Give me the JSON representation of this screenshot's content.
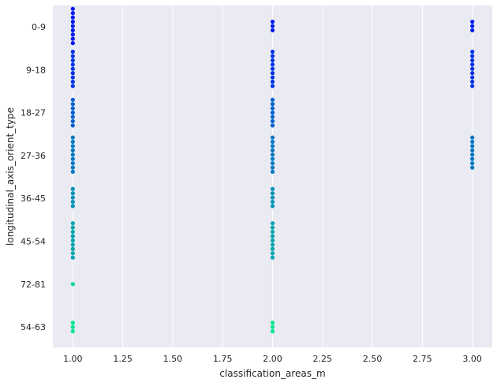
{
  "chart_data": {
    "type": "scatter",
    "title": "",
    "xlabel": "classification_areas_m",
    "ylabel": "longitudinal_axis_orient_type",
    "xlim": [
      0.9,
      3.1
    ],
    "x_ticks": [
      "1.00",
      "1.25",
      "1.50",
      "1.75",
      "2.00",
      "2.25",
      "2.50",
      "2.75",
      "3.00"
    ],
    "x_tick_values": [
      1.0,
      1.25,
      1.5,
      1.75,
      2.0,
      2.25,
      2.5,
      2.75,
      3.0
    ],
    "y_categories": [
      "0-9",
      "9-18",
      "18-27",
      "27-36",
      "36-45",
      "45-54",
      "72-81",
      "54-63"
    ],
    "grid": true,
    "background": "#eaeaf2",
    "colormap": "winter",
    "category_colors": [
      "#0019ef",
      "#0033e5",
      "#0060cc",
      "#0078c2",
      "#0092b6",
      "#00a4ad",
      "#00d894",
      "#00e68d"
    ],
    "points": [
      {
        "x": 1,
        "category": "0-9",
        "offsets": [
          -0.42,
          -0.32,
          -0.22,
          -0.12,
          -0.02,
          0.08,
          0.18,
          0.28,
          0.38
        ]
      },
      {
        "x": 2,
        "category": "0-9",
        "offsets": [
          -0.12,
          -0.02,
          0.08
        ]
      },
      {
        "x": 3,
        "category": "0-9",
        "offsets": [
          -0.12,
          -0.02,
          0.08
        ]
      },
      {
        "x": 1,
        "category": "9-18",
        "offsets": [
          -0.42,
          -0.32,
          -0.22,
          -0.12,
          -0.02,
          0.08,
          0.18,
          0.28,
          0.38
        ]
      },
      {
        "x": 2,
        "category": "9-18",
        "offsets": [
          -0.42,
          -0.32,
          -0.22,
          -0.12,
          -0.02,
          0.08,
          0.18,
          0.28,
          0.38
        ]
      },
      {
        "x": 3,
        "category": "9-18",
        "offsets": [
          -0.42,
          -0.32,
          -0.22,
          -0.12,
          -0.02,
          0.08,
          0.18,
          0.28,
          0.38
        ]
      },
      {
        "x": 1,
        "category": "18-27",
        "offsets": [
          -0.3,
          -0.2,
          -0.1,
          0,
          0.1,
          0.2,
          0.3
        ]
      },
      {
        "x": 2,
        "category": "18-27",
        "offsets": [
          -0.3,
          -0.2,
          -0.1,
          0,
          0.1,
          0.2,
          0.3
        ]
      },
      {
        "x": 1,
        "category": "27-36",
        "offsets": [
          -0.42,
          -0.32,
          -0.22,
          -0.12,
          -0.02,
          0.08,
          0.18,
          0.28,
          0.38
        ]
      },
      {
        "x": 2,
        "category": "27-36",
        "offsets": [
          -0.42,
          -0.32,
          -0.22,
          -0.12,
          -0.02,
          0.08,
          0.18,
          0.28,
          0.38
        ]
      },
      {
        "x": 3,
        "category": "27-36",
        "offsets": [
          -0.42,
          -0.32,
          -0.22,
          -0.12,
          -0.02,
          0.08,
          0.18,
          0.28
        ]
      },
      {
        "x": 1,
        "category": "36-45",
        "offsets": [
          -0.22,
          -0.12,
          -0.02,
          0.08,
          0.18
        ]
      },
      {
        "x": 2,
        "category": "36-45",
        "offsets": [
          -0.22,
          -0.12,
          -0.02,
          0.08,
          0.18
        ]
      },
      {
        "x": 1,
        "category": "45-54",
        "offsets": [
          -0.42,
          -0.32,
          -0.22,
          -0.12,
          -0.02,
          0.08,
          0.18,
          0.28,
          0.38
        ]
      },
      {
        "x": 2,
        "category": "45-54",
        "offsets": [
          -0.42,
          -0.32,
          -0.22,
          -0.12,
          -0.02,
          0.08,
          0.18,
          0.28,
          0.38
        ]
      },
      {
        "x": 1,
        "category": "72-81",
        "offsets": [
          0
        ]
      },
      {
        "x": 1,
        "category": "54-63",
        "offsets": [
          -0.1,
          0,
          0.1
        ]
      },
      {
        "x": 2,
        "category": "54-63",
        "offsets": [
          -0.1,
          0,
          0.1
        ]
      }
    ]
  }
}
